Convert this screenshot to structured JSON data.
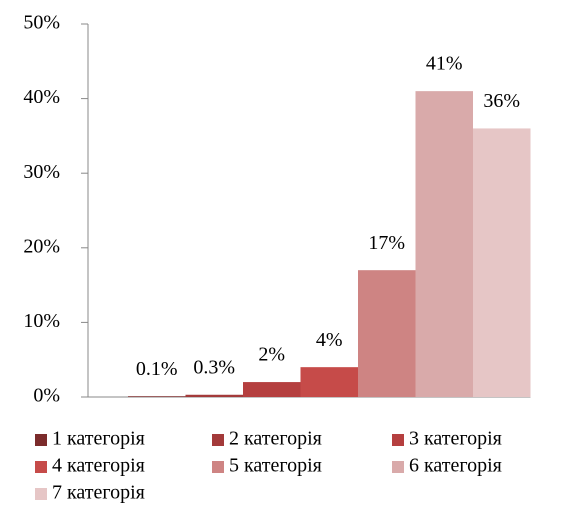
{
  "chart_data": {
    "type": "bar",
    "categories": [
      null
    ],
    "series": [
      {
        "name": "1 категорія",
        "color": "#7b2b2b",
        "values": [
          0.1
        ],
        "value_labels": [
          "0.1%"
        ]
      },
      {
        "name": "2 категорія",
        "color": "#a33a3a",
        "values": [
          0.3
        ],
        "value_labels": [
          "0.3%"
        ]
      },
      {
        "name": "3 категорія",
        "color": "#b53f3f",
        "values": [
          2
        ],
        "value_labels": [
          "2%"
        ]
      },
      {
        "name": "4 категорія",
        "color": "#c64b49",
        "values": [
          4
        ],
        "value_labels": [
          "4%"
        ]
      },
      {
        "name": "5 категорія",
        "color": "#ce8483",
        "values": [
          17
        ],
        "value_labels": [
          "17%"
        ]
      },
      {
        "name": "6 категорія",
        "color": "#d9aaaa",
        "values": [
          41
        ],
        "value_labels": [
          "41%"
        ]
      },
      {
        "name": "7 категорія",
        "color": "#e6c6c6",
        "values": [
          36
        ],
        "value_labels": [
          "36%"
        ]
      }
    ],
    "ylim": [
      0,
      50
    ],
    "yticks": [
      {
        "value": 0,
        "label": "0%"
      },
      {
        "value": 10,
        "label": "10%"
      },
      {
        "value": 20,
        "label": "20%"
      },
      {
        "value": 30,
        "label": "30%"
      },
      {
        "value": 40,
        "label": "40%"
      },
      {
        "value": 50,
        "label": "50%"
      }
    ],
    "legend": "bottom"
  }
}
